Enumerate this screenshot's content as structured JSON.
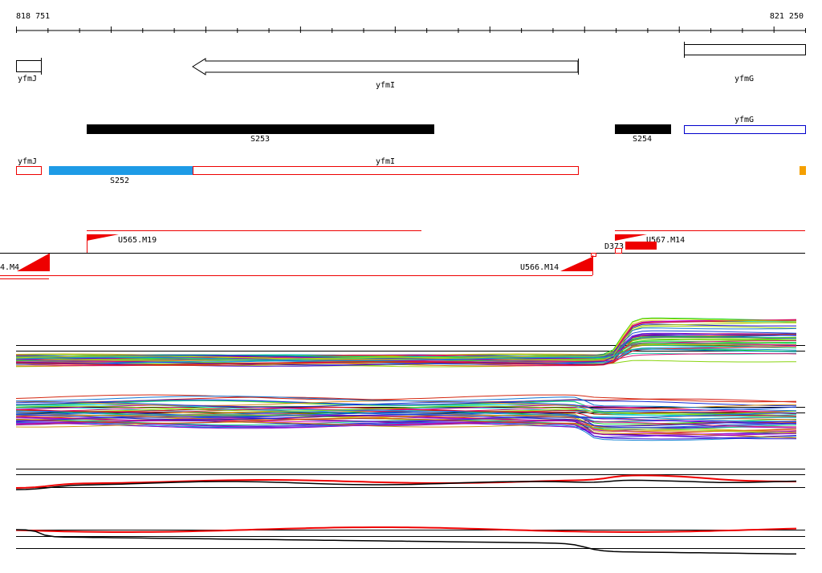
{
  "ruler": {
    "start": "818 751",
    "end": "821 250"
  },
  "genes": [
    {
      "label": "yfmJ"
    },
    {
      "label": "yfmI"
    },
    {
      "label": "yfmG"
    }
  ],
  "segments": [
    {
      "label": "S253"
    },
    {
      "label": "S254"
    },
    {
      "label": "yfmG"
    }
  ],
  "transcripts": [
    {
      "label": "yfmJ"
    },
    {
      "label": "yfmI"
    },
    {
      "label": "S252"
    }
  ],
  "features": [
    {
      "label": "U565.M19"
    },
    {
      "label": "U567.M14"
    },
    {
      "label": "D373"
    },
    {
      "label": "4.M4"
    },
    {
      "label": "U566.M14"
    }
  ]
}
